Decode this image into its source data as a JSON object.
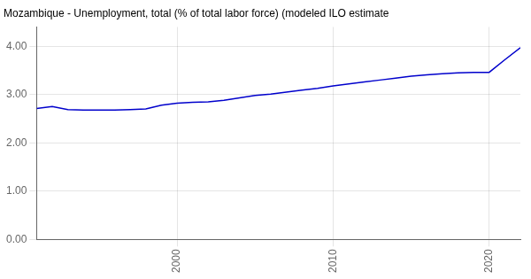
{
  "chart_data": {
    "type": "line",
    "title": "Mozambique - Unemployment, total (% of total labor force) (modeled ILO estimate",
    "x": [
      1991,
      1992,
      1993,
      1994,
      1995,
      1996,
      1997,
      1998,
      1999,
      2000,
      2001,
      2002,
      2003,
      2004,
      2005,
      2006,
      2007,
      2008,
      2009,
      2010,
      2011,
      2012,
      2013,
      2014,
      2015,
      2016,
      2017,
      2018,
      2019,
      2020,
      2021,
      2022
    ],
    "values": [
      2.71,
      2.75,
      2.69,
      2.68,
      2.68,
      2.68,
      2.69,
      2.7,
      2.78,
      2.82,
      2.84,
      2.85,
      2.88,
      2.93,
      2.98,
      3.01,
      3.05,
      3.09,
      3.13,
      3.18,
      3.22,
      3.26,
      3.3,
      3.34,
      3.38,
      3.41,
      3.43,
      3.45,
      3.46,
      3.46,
      3.72,
      3.97
    ],
    "color": "#0000cc",
    "xlim": [
      1991,
      2022
    ],
    "xticks": [
      2000,
      2010,
      2020
    ],
    "ylim": [
      0,
      4.4
    ],
    "yticks": [
      {
        "value": 0,
        "label": "0.00"
      },
      {
        "value": 1,
        "label": "1.00"
      },
      {
        "value": 2,
        "label": "2.00"
      },
      {
        "value": 3,
        "label": "3.00"
      },
      {
        "value": 4,
        "label": "4.00"
      }
    ],
    "grid": true
  }
}
